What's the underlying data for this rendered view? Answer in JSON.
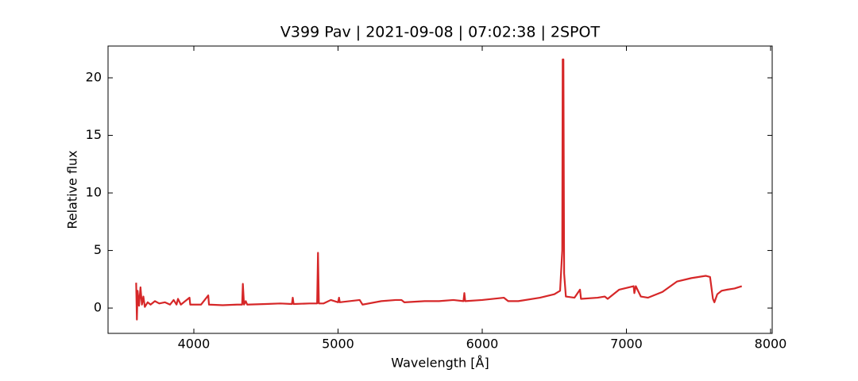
{
  "chart_data": {
    "type": "line",
    "title": "V399 Pav | 2021-09-08 | 07:02:38 | 2SPOT",
    "xlabel": "Wavelength [Å]",
    "ylabel": "Relative flux",
    "color": "#d62728",
    "x": [
      3600,
      3605,
      3610,
      3620,
      3630,
      3640,
      3650,
      3660,
      3680,
      3700,
      3730,
      3760,
      3800,
      3835,
      3860,
      3880,
      3890,
      3910,
      3970,
      3975,
      4050,
      4100,
      4105,
      4200,
      4300,
      4335,
      4340,
      4348,
      4360,
      4370,
      4500,
      4600,
      4680,
      4686,
      4692,
      4800,
      4855,
      4861,
      4867,
      4900,
      4950,
      5000,
      5007,
      5012,
      5150,
      5170,
      5300,
      5400,
      5440,
      5460,
      5600,
      5700,
      5800,
      5870,
      5876,
      5882,
      6000,
      6150,
      6180,
      6250,
      6400,
      6500,
      6540,
      6555,
      6558,
      6563,
      6568,
      6580,
      6640,
      6678,
      6685,
      6800,
      6850,
      6870,
      6950,
      7050,
      7055,
      7065,
      7100,
      7150,
      7250,
      7350,
      7450,
      7550,
      7580,
      7600,
      7610,
      7630,
      7660,
      7700,
      7750,
      7800
    ],
    "values": [
      2.2,
      -1.0,
      1.5,
      0.2,
      1.8,
      0.3,
      1.0,
      0.1,
      0.5,
      0.3,
      0.6,
      0.4,
      0.5,
      0.3,
      0.7,
      0.3,
      0.8,
      0.3,
      0.9,
      0.3,
      0.3,
      1.1,
      0.3,
      0.25,
      0.3,
      0.3,
      2.1,
      0.3,
      0.6,
      0.3,
      0.35,
      0.4,
      0.35,
      0.9,
      0.35,
      0.4,
      0.4,
      4.8,
      0.4,
      0.4,
      0.7,
      0.5,
      0.9,
      0.5,
      0.7,
      0.3,
      0.6,
      0.7,
      0.7,
      0.5,
      0.6,
      0.6,
      0.7,
      0.6,
      1.3,
      0.6,
      0.7,
      0.9,
      0.6,
      0.6,
      0.9,
      1.2,
      1.5,
      5,
      21.6,
      21.6,
      3,
      1.0,
      0.9,
      1.6,
      0.8,
      0.9,
      1.0,
      0.8,
      1.6,
      1.9,
      1.3,
      1.9,
      1.0,
      0.9,
      1.4,
      2.3,
      2.6,
      2.8,
      2.7,
      0.8,
      0.5,
      1.2,
      1.5,
      1.6,
      1.7,
      1.9
    ],
    "xlim": [
      3405,
      8011
    ],
    "xticks": [
      4000,
      5000,
      6000,
      7000,
      8000
    ],
    "ylim": [
      -2.2,
      22.76
    ],
    "yticks": [
      0,
      5,
      10,
      15,
      20
    ]
  }
}
